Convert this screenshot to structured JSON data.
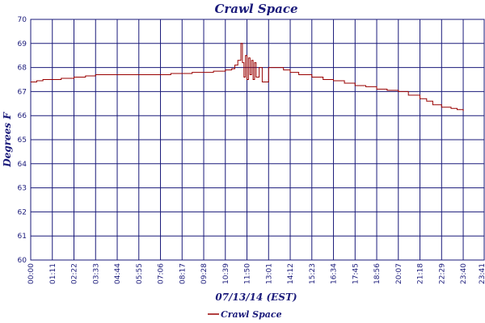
{
  "chart_data": {
    "type": "line",
    "title": "Crawl Space",
    "xlabel": "07/13/14 (EST)",
    "ylabel": "Degrees F",
    "ylim": [
      60,
      70
    ],
    "yticks": [
      60,
      61,
      62,
      63,
      64,
      65,
      66,
      67,
      68,
      69,
      70
    ],
    "xticks": [
      "00:00",
      "01:11",
      "02:22",
      "03:33",
      "04:44",
      "05:55",
      "07:06",
      "08:17",
      "09:28",
      "10:39",
      "11:50",
      "13:01",
      "14:12",
      "15:23",
      "16:34",
      "17:45",
      "18:56",
      "20:07",
      "21:18",
      "22:29",
      "23:40",
      "23:41"
    ],
    "grid": true,
    "legend_position": "bottom-center",
    "colors": {
      "series": "#990000",
      "grid": "#1a1a7a",
      "text": "#1a1a7a"
    },
    "series": [
      {
        "name": "Crawl Space",
        "x_minutes": [
          0,
          20,
          40,
          71,
          100,
          142,
          180,
          213,
          250,
          284,
          320,
          355,
          400,
          426,
          460,
          497,
          530,
          568,
          600,
          639,
          660,
          670,
          680,
          690,
          695,
          700,
          705,
          710,
          715,
          720,
          725,
          730,
          735,
          740,
          750,
          760,
          781,
          800,
          830,
          852,
          880,
          923,
          960,
          994,
          1030,
          1065,
          1100,
          1136,
          1170,
          1207,
          1240,
          1278,
          1300,
          1320,
          1349,
          1380,
          1400,
          1420,
          1421
        ],
        "y": [
          67.4,
          67.45,
          67.5,
          67.5,
          67.55,
          67.6,
          67.65,
          67.7,
          67.7,
          67.7,
          67.7,
          67.7,
          67.7,
          67.7,
          67.75,
          67.75,
          67.8,
          67.8,
          67.85,
          67.9,
          67.95,
          68.1,
          68.3,
          69.0,
          68.2,
          67.6,
          68.5,
          67.5,
          68.4,
          67.7,
          68.3,
          67.5,
          68.2,
          67.6,
          68.0,
          67.4,
          68.0,
          68.0,
          67.9,
          67.8,
          67.7,
          67.6,
          67.5,
          67.45,
          67.35,
          67.25,
          67.2,
          67.1,
          67.05,
          67.0,
          66.85,
          66.7,
          66.6,
          66.45,
          66.35,
          66.3,
          66.25,
          66.2,
          66.2
        ]
      }
    ]
  }
}
